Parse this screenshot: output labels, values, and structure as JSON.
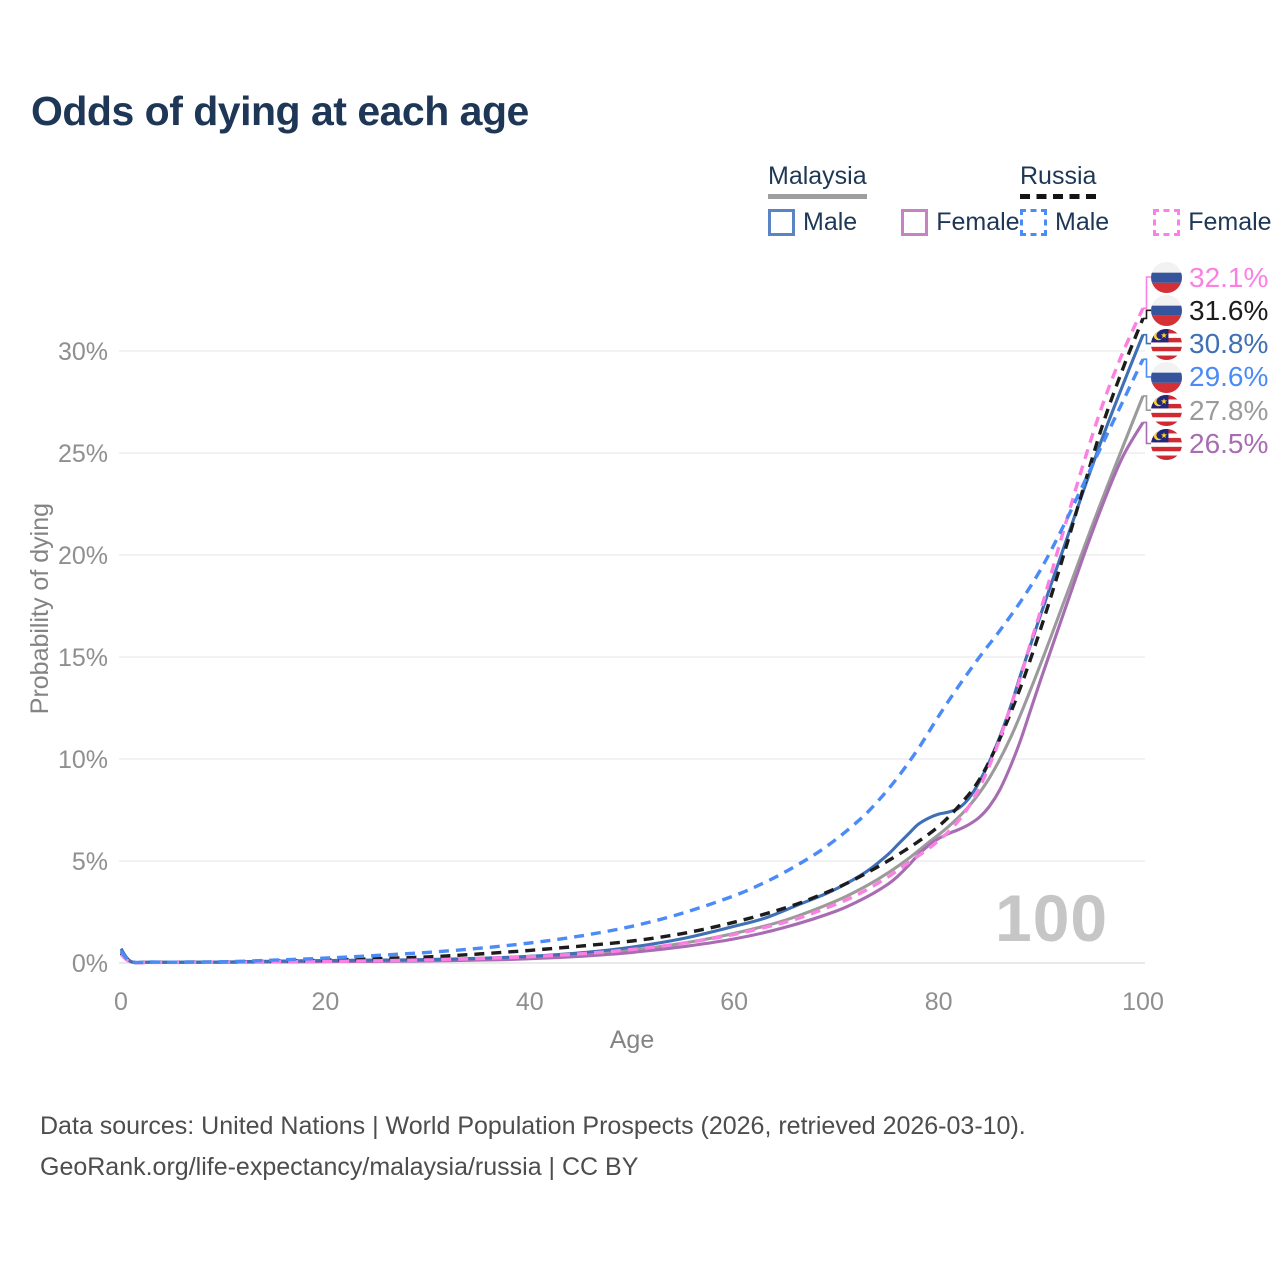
{
  "title": "Odds of dying at each age",
  "legend": {
    "groups": [
      {
        "name": "Malaysia",
        "line_style": "solid",
        "underline_color": "#9e9e9e",
        "items": [
          {
            "label": "Male",
            "color": "#5b84c4",
            "dashed": false
          },
          {
            "label": "Female",
            "color": "#c583c1",
            "dashed": false
          }
        ]
      },
      {
        "name": "Russia",
        "line_style": "dashed",
        "underline_color": "#141414",
        "items": [
          {
            "label": "Male",
            "color": "#4b8bf7",
            "dashed": true
          },
          {
            "label": "Female",
            "color": "#fc7ee8",
            "dashed": true
          }
        ]
      }
    ]
  },
  "chart_data": {
    "type": "line",
    "title": "Odds of dying at each age",
    "xlabel": "Age",
    "ylabel": "Probability of dying",
    "xlim": [
      0,
      100
    ],
    "ylim": [
      0,
      33
    ],
    "xticks": [
      0,
      20,
      40,
      60,
      80,
      100
    ],
    "yticks": [
      {
        "value": 0,
        "label": "0%"
      },
      {
        "value": 5,
        "label": "5%"
      },
      {
        "value": 10,
        "label": "10%"
      },
      {
        "value": 15,
        "label": "15%"
      },
      {
        "value": 20,
        "label": "20%"
      },
      {
        "value": 25,
        "label": "25%"
      },
      {
        "value": 30,
        "label": "30%"
      }
    ],
    "grid": "horizontal",
    "legend_position": "top-right",
    "watermark": "100",
    "series": [
      {
        "id": "malaysia-all",
        "name": "Malaysia All",
        "country": "Malaysia",
        "sex": "All",
        "color": "#9b9b9b",
        "dashed": false,
        "end": {
          "label": "27.8%",
          "value": 27.8,
          "flag": "malaysia"
        },
        "points": [
          [
            0,
            0.62
          ],
          [
            1,
            0.06
          ],
          [
            3,
            0.04
          ],
          [
            5,
            0.04
          ],
          [
            10,
            0.04
          ],
          [
            15,
            0.07
          ],
          [
            20,
            0.1
          ],
          [
            25,
            0.12
          ],
          [
            30,
            0.14
          ],
          [
            35,
            0.19
          ],
          [
            40,
            0.27
          ],
          [
            45,
            0.41
          ],
          [
            50,
            0.63
          ],
          [
            55,
            0.97
          ],
          [
            60,
            1.45
          ],
          [
            65,
            2.1
          ],
          [
            70,
            3.05
          ],
          [
            73,
            3.8
          ],
          [
            75,
            4.4
          ],
          [
            77,
            5.1
          ],
          [
            79,
            5.9
          ],
          [
            81,
            6.7
          ],
          [
            83,
            7.7
          ],
          [
            85,
            9.1
          ],
          [
            87,
            11.0
          ],
          [
            89,
            13.4
          ],
          [
            91,
            16.0
          ],
          [
            93,
            18.7
          ],
          [
            95,
            21.4
          ],
          [
            97,
            24.0
          ],
          [
            100,
            27.8
          ]
        ]
      },
      {
        "id": "malaysia-female",
        "name": "Malaysia Female",
        "country": "Malaysia",
        "sex": "Female",
        "color": "#a76cb2",
        "dashed": false,
        "end": {
          "label": "26.5%",
          "value": 26.5,
          "flag": "malaysia"
        },
        "points": [
          [
            0,
            0.55
          ],
          [
            1,
            0.05
          ],
          [
            3,
            0.04
          ],
          [
            5,
            0.03
          ],
          [
            10,
            0.03
          ],
          [
            15,
            0.05
          ],
          [
            20,
            0.07
          ],
          [
            25,
            0.08
          ],
          [
            30,
            0.1
          ],
          [
            35,
            0.14
          ],
          [
            40,
            0.21
          ],
          [
            45,
            0.33
          ],
          [
            50,
            0.52
          ],
          [
            55,
            0.8
          ],
          [
            60,
            1.18
          ],
          [
            65,
            1.75
          ],
          [
            70,
            2.55
          ],
          [
            73,
            3.25
          ],
          [
            75,
            3.85
          ],
          [
            76,
            4.25
          ],
          [
            77,
            4.75
          ],
          [
            78,
            5.3
          ],
          [
            79,
            5.75
          ],
          [
            80,
            6.1
          ],
          [
            81,
            6.35
          ],
          [
            82,
            6.55
          ],
          [
            83,
            6.8
          ],
          [
            84,
            7.15
          ],
          [
            85,
            7.7
          ],
          [
            86,
            8.5
          ],
          [
            87,
            9.6
          ],
          [
            88,
            10.9
          ],
          [
            89,
            12.4
          ],
          [
            90,
            13.9
          ],
          [
            92,
            16.8
          ],
          [
            94,
            19.7
          ],
          [
            96,
            22.4
          ],
          [
            98,
            24.8
          ],
          [
            100,
            26.5
          ]
        ]
      },
      {
        "id": "malaysia-male",
        "name": "Malaysia Male",
        "country": "Malaysia",
        "sex": "Male",
        "color": "#3f6fb5",
        "dashed": false,
        "end": {
          "label": "30.8%",
          "value": 30.8,
          "flag": "malaysia"
        },
        "points": [
          [
            0,
            0.7
          ],
          [
            1,
            0.07
          ],
          [
            3,
            0.05
          ],
          [
            5,
            0.04
          ],
          [
            10,
            0.05
          ],
          [
            15,
            0.09
          ],
          [
            20,
            0.12
          ],
          [
            25,
            0.14
          ],
          [
            30,
            0.17
          ],
          [
            35,
            0.23
          ],
          [
            40,
            0.33
          ],
          [
            45,
            0.5
          ],
          [
            50,
            0.78
          ],
          [
            55,
            1.2
          ],
          [
            60,
            1.8
          ],
          [
            63,
            2.2
          ],
          [
            66,
            2.8
          ],
          [
            69,
            3.4
          ],
          [
            71,
            3.9
          ],
          [
            73,
            4.5
          ],
          [
            75,
            5.3
          ],
          [
            76,
            5.8
          ],
          [
            77,
            6.3
          ],
          [
            78,
            6.8
          ],
          [
            79,
            7.1
          ],
          [
            80,
            7.3
          ],
          [
            81,
            7.4
          ],
          [
            82,
            7.6
          ],
          [
            83,
            8.1
          ],
          [
            84,
            8.9
          ],
          [
            85,
            9.9
          ],
          [
            86,
            11.1
          ],
          [
            87,
            12.5
          ],
          [
            88,
            14.1
          ],
          [
            89,
            15.6
          ],
          [
            90,
            17.1
          ],
          [
            92,
            20.0
          ],
          [
            94,
            22.9
          ],
          [
            96,
            25.7
          ],
          [
            98,
            28.3
          ],
          [
            100,
            30.8
          ]
        ]
      },
      {
        "id": "russia-all",
        "name": "Russia All",
        "country": "Russia",
        "sex": "All",
        "color": "#1c1c1c",
        "dashed": true,
        "end": {
          "label": "31.6%",
          "value": 31.6,
          "flag": "russia"
        },
        "points": [
          [
            0,
            0.48
          ],
          [
            1,
            0.05
          ],
          [
            3,
            0.04
          ],
          [
            5,
            0.04
          ],
          [
            10,
            0.05
          ],
          [
            15,
            0.09
          ],
          [
            20,
            0.14
          ],
          [
            25,
            0.21
          ],
          [
            30,
            0.3
          ],
          [
            35,
            0.44
          ],
          [
            40,
            0.62
          ],
          [
            45,
            0.83
          ],
          [
            50,
            1.08
          ],
          [
            55,
            1.45
          ],
          [
            60,
            2.0
          ],
          [
            65,
            2.7
          ],
          [
            68,
            3.25
          ],
          [
            71,
            3.9
          ],
          [
            74,
            4.7
          ],
          [
            76,
            5.3
          ],
          [
            78,
            5.95
          ],
          [
            80,
            6.7
          ],
          [
            82,
            7.7
          ],
          [
            84,
            9.0
          ],
          [
            86,
            11.0
          ],
          [
            88,
            13.5
          ],
          [
            90,
            16.4
          ],
          [
            92,
            19.6
          ],
          [
            94,
            23.0
          ],
          [
            96,
            26.3
          ],
          [
            98,
            29.1
          ],
          [
            100,
            31.6
          ]
        ]
      },
      {
        "id": "russia-female",
        "name": "Russia Female",
        "country": "Russia",
        "sex": "Female",
        "color": "#fb80e2",
        "dashed": true,
        "end": {
          "label": "32.1%",
          "value": 32.1,
          "flag": "russia"
        },
        "points": [
          [
            0,
            0.42
          ],
          [
            1,
            0.04
          ],
          [
            3,
            0.03
          ],
          [
            5,
            0.03
          ],
          [
            10,
            0.04
          ],
          [
            15,
            0.06
          ],
          [
            20,
            0.08
          ],
          [
            25,
            0.11
          ],
          [
            30,
            0.15
          ],
          [
            35,
            0.22
          ],
          [
            40,
            0.31
          ],
          [
            45,
            0.45
          ],
          [
            50,
            0.66
          ],
          [
            55,
            0.97
          ],
          [
            60,
            1.4
          ],
          [
            65,
            2.0
          ],
          [
            68,
            2.5
          ],
          [
            71,
            3.1
          ],
          [
            73,
            3.6
          ],
          [
            75,
            4.2
          ],
          [
            77,
            4.9
          ],
          [
            79,
            5.6
          ],
          [
            80,
            6.0
          ],
          [
            81,
            6.45
          ],
          [
            82,
            7.0
          ],
          [
            83,
            7.7
          ],
          [
            84,
            8.6
          ],
          [
            85,
            9.7
          ],
          [
            86,
            11.0
          ],
          [
            87,
            12.5
          ],
          [
            88,
            14.0
          ],
          [
            89,
            15.7
          ],
          [
            90,
            17.3
          ],
          [
            92,
            20.8
          ],
          [
            94,
            24.2
          ],
          [
            96,
            27.3
          ],
          [
            98,
            29.9
          ],
          [
            100,
            32.1
          ]
        ]
      },
      {
        "id": "russia-male",
        "name": "Russia Male",
        "country": "Russia",
        "sex": "Male",
        "color": "#4b8bf7",
        "dashed": true,
        "end": {
          "label": "29.6%",
          "value": 29.6,
          "flag": "russia"
        },
        "points": [
          [
            0,
            0.58
          ],
          [
            1,
            0.06
          ],
          [
            3,
            0.05
          ],
          [
            5,
            0.04
          ],
          [
            10,
            0.06
          ],
          [
            15,
            0.14
          ],
          [
            20,
            0.24
          ],
          [
            25,
            0.37
          ],
          [
            30,
            0.52
          ],
          [
            35,
            0.72
          ],
          [
            40,
            0.98
          ],
          [
            45,
            1.33
          ],
          [
            50,
            1.8
          ],
          [
            55,
            2.45
          ],
          [
            60,
            3.3
          ],
          [
            63,
            3.95
          ],
          [
            66,
            4.75
          ],
          [
            69,
            5.7
          ],
          [
            72,
            6.9
          ],
          [
            74,
            7.9
          ],
          [
            76,
            9.1
          ],
          [
            78,
            10.5
          ],
          [
            80,
            12.1
          ],
          [
            82,
            13.6
          ],
          [
            84,
            15.0
          ],
          [
            86,
            16.3
          ],
          [
            88,
            17.7
          ],
          [
            90,
            19.3
          ],
          [
            92,
            21.2
          ],
          [
            94,
            23.3
          ],
          [
            96,
            25.4
          ],
          [
            98,
            27.5
          ],
          [
            100,
            29.6
          ]
        ]
      }
    ]
  },
  "footer": {
    "line1": "Data sources: United Nations | World Population Prospects (2026, retrieved 2026-03-10).",
    "line2": "GeoRank.org/life-expectancy/malaysia/russia | CC BY"
  }
}
